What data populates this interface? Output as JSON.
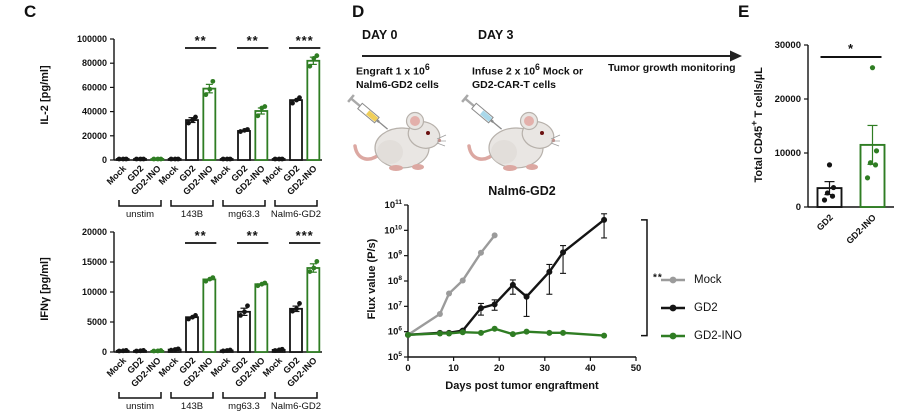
{
  "panels": {
    "c_label": "C",
    "d_label": "D",
    "e_label": "E"
  },
  "colors": {
    "mock": "#9b9b9b",
    "gd2": "#141414",
    "gd2_ino": "#2f7d23"
  },
  "timeline": {
    "day0_label": "DAY 0",
    "day3_label": "DAY 3",
    "engraft_prefix": "Engraft 1 x 10",
    "engraft_sup": "6",
    "engraft_line2": "Nalm6-GD2 cells",
    "infuse_prefix": "Infuse 2 x 10",
    "infuse_sup": "6",
    "infuse_suffix": " Mock or",
    "infuse_line2": "GD2-CAR-T cells",
    "monitor_label": "Tumor growth monitoring",
    "syringe1_color": "#f0cf5a",
    "syringe2_color": "#a9d8ea"
  },
  "legend": {
    "items": [
      {
        "label": "Mock",
        "color": "#9b9b9b"
      },
      {
        "label": "GD2",
        "color": "#141414"
      },
      {
        "label": "GD2-INO",
        "color": "#2f7d23"
      }
    ]
  },
  "chart_data": [
    {
      "id": "il2",
      "type": "bar",
      "ylabel": "IL-2 [pg/ml]",
      "ylim": [
        0,
        100000
      ],
      "yticks": [
        0,
        20000,
        40000,
        60000,
        80000,
        100000
      ],
      "groups": [
        "unstim",
        "143B",
        "mg63.3",
        "Nalm6-GD2"
      ],
      "series": [
        "Mock",
        "GD2",
        "GD2-INO"
      ],
      "series_colors": [
        "#141414",
        "#141414",
        "#2f7d23"
      ],
      "means": [
        [
          300,
          300,
          300
        ],
        [
          400,
          33000,
          59000
        ],
        [
          300,
          24000,
          40500
        ],
        [
          350,
          49500,
          82000
        ]
      ],
      "errors": [
        [
          100,
          100,
          100
        ],
        [
          200,
          2000,
          3500
        ],
        [
          150,
          700,
          2500
        ],
        [
          150,
          1500,
          3000
        ]
      ],
      "points": [
        [
          [
            200,
            300,
            400
          ],
          [
            200,
            300,
            400
          ],
          [
            200,
            300,
            400
          ]
        ],
        [
          [
            300,
            400,
            500
          ],
          [
            30500,
            33000,
            35500
          ],
          [
            54000,
            58500,
            65000
          ]
        ],
        [
          [
            200,
            300,
            400
          ],
          [
            23500,
            24500,
            25200
          ],
          [
            36500,
            43000,
            44200
          ]
        ],
        [
          [
            250,
            350,
            450
          ],
          [
            47000,
            49500,
            51500
          ],
          [
            77500,
            84000,
            86200
          ]
        ]
      ],
      "significance": [
        {
          "group": 1,
          "between": [
            "GD2",
            "GD2-INO"
          ],
          "label": "**"
        },
        {
          "group": 2,
          "between": [
            "GD2",
            "GD2-INO"
          ],
          "label": "**"
        },
        {
          "group": 3,
          "between": [
            "GD2",
            "GD2-INO"
          ],
          "label": "***"
        }
      ]
    },
    {
      "id": "ifng",
      "type": "bar",
      "ylabel": "IFNγ [pg/ml]",
      "ylim": [
        0,
        20000
      ],
      "yticks": [
        0,
        5000,
        10000,
        15000,
        20000
      ],
      "groups": [
        "unstim",
        "143B",
        "mg63.3",
        "Nalm6-GD2"
      ],
      "series": [
        "Mock",
        "GD2",
        "GD2-INO"
      ],
      "series_colors": [
        "#141414",
        "#141414",
        "#2f7d23"
      ],
      "means": [
        [
          200,
          200,
          180
        ],
        [
          400,
          5800,
          12100
        ],
        [
          250,
          6700,
          11300
        ],
        [
          350,
          7200,
          14000
        ]
      ],
      "errors": [
        [
          60,
          60,
          60
        ],
        [
          120,
          250,
          300
        ],
        [
          60,
          600,
          250
        ],
        [
          120,
          450,
          700
        ]
      ],
      "points": [
        [
          [
            150,
            200,
            260
          ],
          [
            150,
            200,
            260
          ],
          [
            130,
            180,
            240
          ]
        ],
        [
          [
            300,
            420,
            520
          ],
          [
            5500,
            5800,
            6100
          ],
          [
            11800,
            12150,
            12400
          ]
        ],
        [
          [
            180,
            250,
            320
          ],
          [
            6100,
            6700,
            7700
          ],
          [
            11050,
            11300,
            11500
          ]
        ],
        [
          [
            250,
            350,
            460
          ],
          [
            6800,
            7200,
            8100
          ],
          [
            13400,
            14000,
            15100
          ]
        ]
      ],
      "significance": [
        {
          "group": 1,
          "between": [
            "GD2",
            "GD2-INO"
          ],
          "label": "**"
        },
        {
          "group": 2,
          "between": [
            "GD2",
            "GD2-INO"
          ],
          "label": "**"
        },
        {
          "group": 3,
          "between": [
            "GD2",
            "GD2-INO"
          ],
          "label": "***"
        }
      ]
    },
    {
      "id": "flux",
      "type": "line",
      "title": "Nalm6-GD2",
      "ylabel": "Flux value (P/s)",
      "xlabel": "Days post tumor engraftment",
      "log_y": true,
      "y_exponents": [
        5,
        6,
        7,
        8,
        9,
        10,
        11
      ],
      "xlim": [
        0,
        50
      ],
      "xticks": [
        0,
        10,
        20,
        30,
        40,
        50
      ],
      "series": [
        {
          "name": "Mock",
          "color": "#9b9b9b",
          "x": [
            0,
            7,
            9,
            12,
            16,
            19
          ],
          "y": [
            750000.0,
            5000000.0,
            32000000.0,
            105000000.0,
            1300000000.0,
            6300000000.0
          ],
          "ylo": [
            750000.0,
            5000000.0,
            32000000.0,
            105000000.0,
            1300000000.0,
            6300000000.0
          ],
          "yhi": [
            750000.0,
            5000000.0,
            32000000.0,
            105000000.0,
            1300000000.0,
            6300000000.0
          ]
        },
        {
          "name": "GD2",
          "color": "#141414",
          "x": [
            0,
            7,
            9,
            12,
            16,
            19,
            23,
            26,
            31,
            34,
            43
          ],
          "y": [
            750000.0,
            900000.0,
            900000.0,
            1100000.0,
            8500000.0,
            12000000.0,
            70000000.0,
            24000000.0,
            230000000.0,
            1350000000.0,
            26000000000.0
          ],
          "ylo": [
            750000.0,
            900000.0,
            900000.0,
            1000000.0,
            4500000.0,
            7000000.0,
            30000000.0,
            4000000.0,
            30000000.0,
            200000000.0,
            5000000000.0
          ],
          "yhi": [
            750000.0,
            900000.0,
            900000.0,
            1200000.0,
            13000000.0,
            18000000.0,
            110000000.0,
            30000000.0,
            450000000.0,
            2500000000.0,
            45000000000.0
          ]
        },
        {
          "name": "GD2-INO",
          "color": "#2f7d23",
          "x": [
            0,
            7,
            9,
            12,
            16,
            19,
            23,
            26,
            31,
            34,
            43
          ],
          "y": [
            750000.0,
            850000.0,
            850000.0,
            950000.0,
            900000.0,
            1300000.0,
            800000.0,
            1000000.0,
            900000.0,
            900000.0,
            700000.0
          ],
          "ylo": [
            750000.0,
            850000.0,
            850000.0,
            950000.0,
            900000.0,
            1300000.0,
            800000.0,
            1000000.0,
            900000.0,
            900000.0,
            700000.0
          ],
          "yhi": [
            750000.0,
            850000.0,
            850000.0,
            950000.0,
            900000.0,
            1300000.0,
            800000.0,
            1000000.0,
            900000.0,
            900000.0,
            700000.0
          ]
        }
      ],
      "significance": {
        "between": [
          "GD2",
          "GD2-INO"
        ],
        "label": "**"
      }
    },
    {
      "id": "cd45",
      "type": "bar",
      "ylabel_prefix": "Total CD45",
      "ylabel_sup": "+",
      "ylabel_suffix": " T cells/µL",
      "ylim": [
        0,
        30000
      ],
      "yticks": [
        0,
        10000,
        20000,
        30000
      ],
      "categories": [
        "GD2",
        "GD2-INO"
      ],
      "colors": [
        "#141414",
        "#2f7d23"
      ],
      "means": [
        3500,
        11500
      ],
      "errors": [
        1200,
        3600
      ],
      "points": [
        [
          1300,
          2000,
          2600,
          3600,
          7800
        ],
        [
          5400,
          7800,
          8200,
          10400,
          25800
        ]
      ],
      "significance": {
        "between": [
          "GD2",
          "GD2-INO"
        ],
        "label": "*"
      }
    }
  ]
}
